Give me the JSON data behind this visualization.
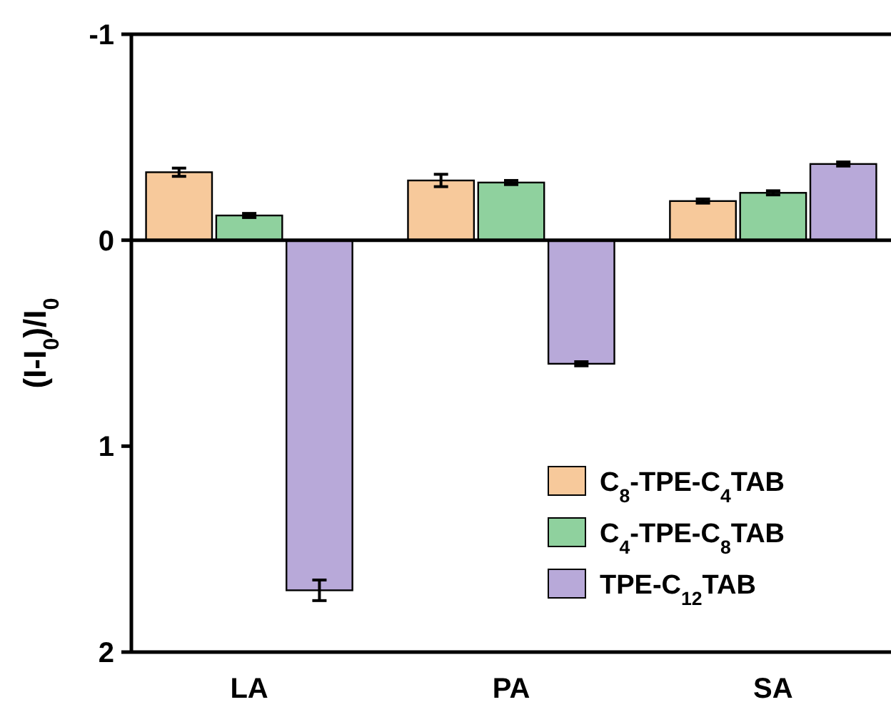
{
  "chart_data": {
    "type": "bar",
    "ylabel": "(I-I$_{0}$)/I$_{0}$",
    "categories": [
      "LA",
      "PA",
      "SA"
    ],
    "series": [
      {
        "name": "C$_{8}$-TPE-C$_{4}$TAB",
        "color": "#f7c99b",
        "values": [
          -0.33,
          -0.29,
          -0.19
        ],
        "errors": [
          0.02,
          0.03,
          0.01
        ]
      },
      {
        "name": "C$_{4}$-TPE-C$_{8}$TAB",
        "color": "#8fd19e",
        "values": [
          -0.12,
          -0.28,
          -0.23
        ],
        "errors": [
          0.01,
          0.01,
          0.01
        ]
      },
      {
        "name": "TPE-C$_{12}$TAB",
        "color": "#b8a9d9",
        "values": [
          1.7,
          0.6,
          -0.37
        ],
        "errors": [
          0.05,
          0.01,
          0.01
        ]
      }
    ],
    "ylim": [
      2,
      -1
    ],
    "yticks": [
      -1,
      0,
      1,
      2
    ],
    "legend": "bottom right"
  }
}
